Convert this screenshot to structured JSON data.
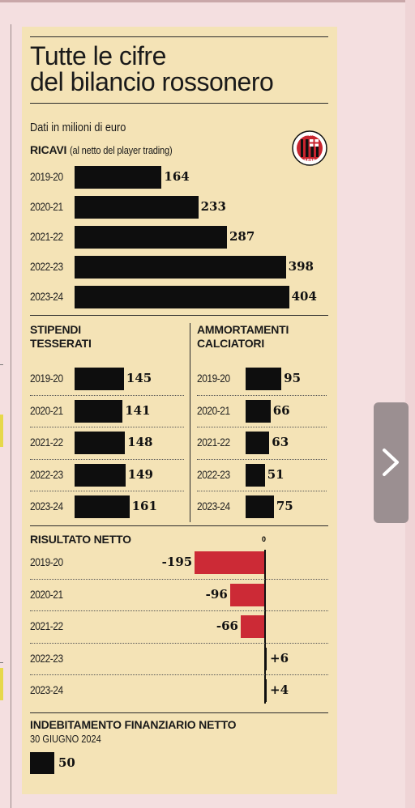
{
  "title_line1": "Tutte le cifre",
  "title_line2": "del bilancio rossonero",
  "subtitle": "Dati in milioni di euro",
  "colors": {
    "card": "#f4e3b6",
    "bar": "#0e0e0e",
    "negative": "#cc2a36",
    "background": "#f4dfe0"
  },
  "logo": {
    "name": "ac-milan-crest",
    "letters": "ACM",
    "year": "1899"
  },
  "next_icon": "chevron-right-icon",
  "chart_data": [
    {
      "type": "bar",
      "orientation": "horizontal",
      "title": "RICAVI",
      "note": "(al netto del player trading)",
      "categories": [
        "2019-20",
        "2020-21",
        "2021-22",
        "2022-23",
        "2023-24"
      ],
      "values": [
        164,
        233,
        287,
        398,
        404
      ],
      "value_labels": [
        "164",
        "233",
        "287",
        "398",
        "404"
      ]
    },
    {
      "type": "bar",
      "orientation": "horizontal",
      "title_line1": "STIPENDI",
      "title_line2": "TESSERATI",
      "categories": [
        "2019-20",
        "2020-21",
        "2021-22",
        "2022-23",
        "2023-24"
      ],
      "values": [
        145,
        141,
        148,
        149,
        161
      ],
      "value_labels": [
        "145",
        "141",
        "148",
        "149",
        "161"
      ]
    },
    {
      "type": "bar",
      "orientation": "horizontal",
      "title_line1": "AMMORTAMENTI",
      "title_line2": "CALCIATORI",
      "categories": [
        "2019-20",
        "2020-21",
        "2021-22",
        "2022-23",
        "2023-24"
      ],
      "values": [
        95,
        66,
        63,
        51,
        75
      ],
      "value_labels": [
        "95",
        "66",
        "63",
        "51",
        "75"
      ]
    },
    {
      "type": "bar",
      "orientation": "horizontal",
      "title": "RISULTATO NETTO",
      "zero_label": "0",
      "categories": [
        "2019-20",
        "2020-21",
        "2021-22",
        "2022-23",
        "2023-24"
      ],
      "values": [
        -195,
        -96,
        -66,
        6,
        4
      ],
      "value_labels": [
        "-195",
        "-96",
        "-66",
        "+6",
        "+4"
      ]
    },
    {
      "type": "bar",
      "orientation": "horizontal",
      "title": "INDEBITAMENTO FINANZIARIO NETTO",
      "date": "30 GIUGNO 2024",
      "values": [
        50
      ],
      "value_labels": [
        "50"
      ]
    }
  ]
}
